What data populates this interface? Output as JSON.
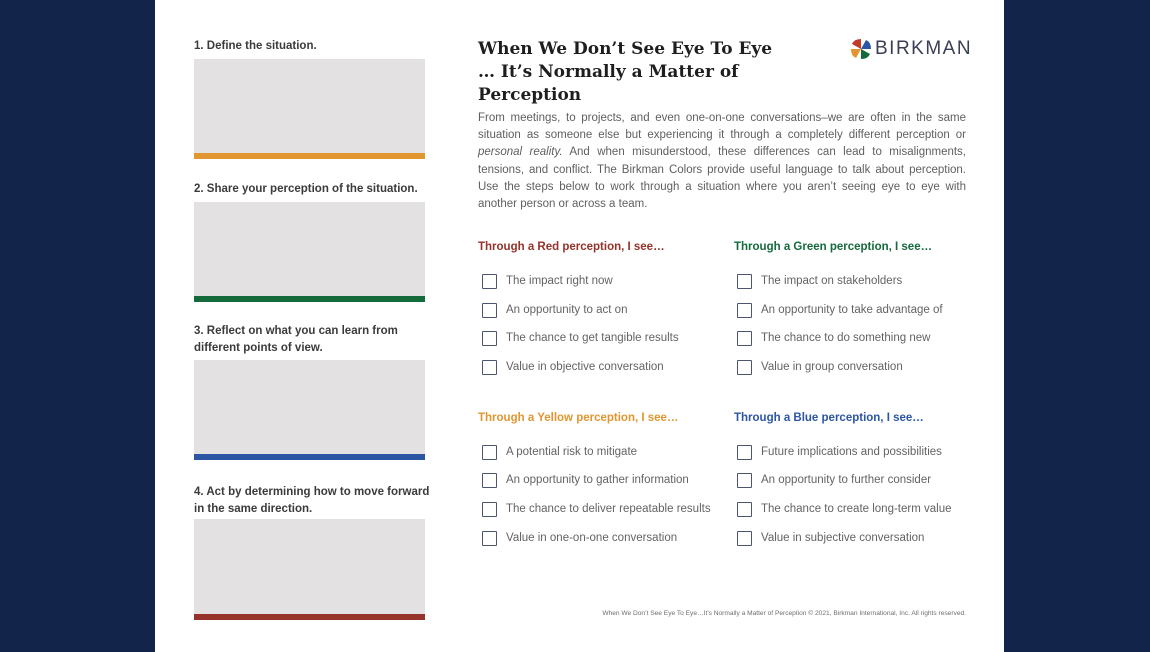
{
  "steps": [
    {
      "label": "1. Define the situation.",
      "bar_color": "#e2962f"
    },
    {
      "label": "2. Share your perception of the situation.",
      "bar_color": "#156a3c"
    },
    {
      "label": "3. Reflect on what you can learn from different points of view.",
      "bar_color": "#2c55a4"
    },
    {
      "label": "4. Act by determining how to move forward in the same direction.",
      "bar_color": "#953229"
    }
  ],
  "title": {
    "line1": "When We Don’t See Eye To Eye",
    "line2": "… It’s Normally a Matter of Perception"
  },
  "logo": {
    "text": "BIRKMAN",
    "icon": "birkman-pinwheel-icon"
  },
  "intro": {
    "part1": "From meetings, to projects, and even one-on-one conversations–we are often in the same situation as someone else but experiencing it through a completely different perception or ",
    "emphasis": "personal reality.",
    "part2": " And when misunderstood, these differences can lead to misalignments, tensions, and conflict. The Birkman Colors provide useful language to talk about perception. Use the steps below to work through a situation where you aren’t seeing eye to eye with another person or across a team."
  },
  "perceptions": {
    "red": {
      "title": "Through a Red perception, I see…",
      "color": "#953229",
      "items": [
        "The impact right now",
        "An opportunity to act on",
        "The chance to get tangible results",
        "Value in objective conversation"
      ]
    },
    "green": {
      "title": "Through a Green perception, I see…",
      "color": "#156a3c",
      "items": [
        "The impact on stakeholders",
        "An opportunity to take advantage of",
        "The chance to do something new",
        "Value in group conversation"
      ]
    },
    "yellow": {
      "title": "Through a Yellow perception, I see…",
      "color": "#e2962f",
      "items": [
        "A potential risk to mitigate",
        "An opportunity to gather information",
        "The chance to deliver repeatable results",
        "Value in one-on-one conversation"
      ]
    },
    "blue": {
      "title": "Through a Blue perception, I see…",
      "color": "#2c55a4",
      "items": [
        "Future implications and possibilities",
        "An opportunity to further consider",
        "The chance to create long-term value",
        "Value in subjective conversation"
      ]
    }
  },
  "footer": "When We Don’t See Eye To Eye…It’s Normally a Matter of Perception  © 2021, Birkman International, Inc. All rights reserved.",
  "colors": {
    "background": "#13244a",
    "box_fill": "#e3e1e2"
  }
}
